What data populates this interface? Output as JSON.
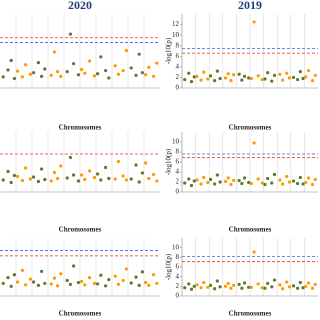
{
  "chart_data": [
    {
      "type": "manhattan",
      "title": "2020",
      "xlabel": "Chromosomes",
      "xlim": [
        0,
        10
      ],
      "ylim": [
        0,
        14
      ],
      "thresholds": [
        {
          "value": 9.5,
          "color": "#e03030"
        },
        {
          "value": 8.6,
          "color": "#4060e0"
        }
      ],
      "series": [
        {
          "color": "#5b7a2b",
          "x": [
            0.2,
            0.5,
            0.7,
            0.9,
            2.1,
            2.4,
            2.6,
            2.8,
            4.2,
            4.4,
            4.6,
            4.9,
            6.1,
            6.3,
            6.6,
            6.8,
            8.2,
            8.5,
            8.7,
            8.9
          ],
          "values": [
            2.1,
            3.4,
            5.2,
            1.8,
            2.9,
            4.8,
            2.2,
            3.6,
            3.1,
            10.2,
            4.6,
            2.5,
            2.7,
            5.9,
            3.3,
            1.9,
            3.8,
            2.4,
            6.4,
            2.9
          ]
        },
        {
          "color": "#ff9900",
          "x": [
            1.1,
            1.4,
            1.6,
            1.9,
            3.2,
            3.4,
            3.6,
            3.8,
            5.1,
            5.3,
            5.6,
            5.9,
            7.2,
            7.4,
            7.7,
            7.9,
            9.1,
            9.3,
            9.6,
            9.8
          ],
          "values": [
            3.2,
            2.1,
            4.4,
            2.6,
            2.4,
            6.8,
            3.1,
            2.2,
            3.5,
            2.8,
            5.1,
            2.3,
            4.2,
            2.6,
            3.3,
            7.1,
            2.5,
            3.9,
            2.2,
            4.7
          ]
        }
      ]
    },
    {
      "type": "manhattan",
      "title": "2019",
      "xlabel": "Chromosomes",
      "ylabel": "-log10(p)",
      "xlim": [
        0,
        10
      ],
      "ylim": [
        0,
        14
      ],
      "yticks": [
        0,
        2,
        4,
        6,
        8,
        10,
        12
      ],
      "thresholds": [
        {
          "value": 7.5,
          "color": "#4060e0"
        },
        {
          "value": 6.6,
          "color": "#e03030"
        }
      ],
      "series": [
        {
          "color": "#5b7a2b",
          "x": [
            0.2,
            0.5,
            0.7,
            0.9,
            2.1,
            2.4,
            2.6,
            2.8,
            4.2,
            4.4,
            4.6,
            4.9,
            6.1,
            6.3,
            6.6,
            6.8,
            8.2,
            8.5,
            8.7,
            8.9
          ],
          "values": [
            1.6,
            2.8,
            1.2,
            2.1,
            2.3,
            1.4,
            3.2,
            1.8,
            2.6,
            1.5,
            2.2,
            1.9,
            1.7,
            2.9,
            1.3,
            2.4,
            2.0,
            1.6,
            3.1,
            1.8
          ]
        },
        {
          "color": "#ff9900",
          "x": [
            1.1,
            1.4,
            1.6,
            1.9,
            3.2,
            3.4,
            3.6,
            3.8,
            5.1,
            5.3,
            5.6,
            5.9,
            7.2,
            7.4,
            7.7,
            7.9,
            9.1,
            9.3,
            9.6,
            9.8
          ],
          "values": [
            2.2,
            1.5,
            3.0,
            1.7,
            1.9,
            2.7,
            1.4,
            2.5,
            1.8,
            12.5,
            2.3,
            1.6,
            2.6,
            1.5,
            2.8,
            1.9,
            2.1,
            3.3,
            1.4,
            2.4
          ]
        }
      ]
    },
    {
      "type": "manhattan",
      "xlabel": "Chromosomes",
      "xlim": [
        0,
        10
      ],
      "ylim": [
        0,
        12
      ],
      "thresholds": [
        {
          "value": 7.6,
          "color": "#e03030"
        }
      ],
      "series": [
        {
          "color": "#5b7a2b",
          "x": [
            0.2,
            0.5,
            0.7,
            0.9,
            2.1,
            2.4,
            2.6,
            2.8,
            4.2,
            4.4,
            4.6,
            4.9,
            6.1,
            6.3,
            6.6,
            6.8,
            8.2,
            8.5,
            8.7,
            8.9
          ],
          "values": [
            2.4,
            4.1,
            1.9,
            3.3,
            3.0,
            2.1,
            4.6,
            2.5,
            2.8,
            6.9,
            3.4,
            2.2,
            3.6,
            2.4,
            4.9,
            2.7,
            2.6,
            5.4,
            2.0,
            3.8
          ]
        },
        {
          "color": "#ff9900",
          "x": [
            1.1,
            1.4,
            1.6,
            1.9,
            3.2,
            3.4,
            3.6,
            3.8,
            5.1,
            5.3,
            5.6,
            5.9,
            7.2,
            7.4,
            7.7,
            7.9,
            9.1,
            9.3,
            9.6,
            9.8
          ],
          "values": [
            3.1,
            2.3,
            4.8,
            2.6,
            2.2,
            3.9,
            2.7,
            5.2,
            3.4,
            2.5,
            4.2,
            2.9,
            2.6,
            6.1,
            3.2,
            2.4,
            5.8,
            2.7,
            3.5,
            2.2
          ]
        }
      ]
    },
    {
      "type": "manhattan",
      "xlabel": "Chromosomes",
      "ylabel": "-log10(p)",
      "xlim": [
        0,
        10
      ],
      "ylim": [
        0,
        12
      ],
      "yticks": [
        0,
        2,
        4,
        6,
        8,
        10
      ],
      "thresholds": [
        {
          "value": 7.6,
          "color": "#4060e0"
        },
        {
          "value": 6.9,
          "color": "#e03030"
        }
      ],
      "series": [
        {
          "color": "#5b7a2b",
          "x": [
            0.2,
            0.5,
            0.7,
            0.9,
            2.1,
            2.4,
            2.6,
            2.8,
            4.2,
            4.4,
            4.6,
            4.9,
            6.1,
            6.3,
            6.6,
            6.8,
            8.2,
            8.5,
            8.7,
            8.9
          ],
          "values": [
            1.8,
            2.6,
            1.3,
            2.2,
            2.5,
            1.6,
            3.4,
            2.0,
            2.3,
            1.7,
            2.8,
            1.9,
            1.5,
            2.7,
            1.8,
            3.5,
            2.2,
            1.7,
            2.9,
            1.6
          ]
        },
        {
          "color": "#ff9900",
          "x": [
            1.1,
            1.4,
            1.6,
            1.9,
            3.2,
            3.4,
            3.6,
            3.8,
            5.1,
            5.3,
            5.6,
            5.9,
            7.2,
            7.4,
            7.7,
            7.9,
            9.1,
            9.3,
            9.6,
            9.8
          ],
          "values": [
            2.4,
            1.6,
            2.9,
            1.9,
            2.1,
            2.8,
            1.5,
            2.3,
            1.7,
            9.8,
            2.6,
            1.8,
            2.4,
            1.6,
            3.1,
            2.0,
            1.9,
            2.8,
            1.5,
            2.5
          ]
        }
      ]
    },
    {
      "type": "manhattan",
      "xlabel": "Chromosomes",
      "xlim": [
        0,
        10
      ],
      "ylim": [
        0,
        12
      ],
      "thresholds": [
        {
          "value": 9.4,
          "color": "#4060e0"
        },
        {
          "value": 8.3,
          "color": "#e03030"
        }
      ],
      "series": [
        {
          "color": "#5b7a2b",
          "x": [
            0.2,
            0.5,
            0.7,
            0.9,
            2.1,
            2.4,
            2.6,
            2.8,
            4.2,
            4.4,
            4.6,
            4.9,
            6.1,
            6.3,
            6.6,
            6.8,
            8.2,
            8.5,
            8.7,
            8.9
          ],
          "values": [
            2.6,
            3.8,
            2.0,
            4.4,
            2.9,
            2.2,
            5.1,
            2.6,
            3.2,
            2.4,
            6.2,
            2.8,
            2.5,
            4.3,
            2.1,
            3.4,
            2.7,
            3.9,
            2.2,
            5.0
          ]
        },
        {
          "color": "#ff9900",
          "x": [
            1.1,
            1.4,
            1.6,
            1.9,
            3.2,
            3.4,
            3.6,
            3.8,
            5.1,
            5.3,
            5.6,
            5.9,
            7.2,
            7.4,
            7.7,
            7.9,
            9.1,
            9.3,
            9.6,
            9.8
          ],
          "values": [
            2.9,
            5.3,
            2.3,
            3.5,
            2.5,
            3.7,
            2.1,
            4.6,
            3.0,
            2.3,
            3.8,
            2.6,
            4.1,
            2.4,
            3.2,
            5.6,
            2.8,
            2.2,
            4.4,
            2.6
          ]
        }
      ]
    },
    {
      "type": "manhattan",
      "xlabel": "Chromosomes",
      "ylabel": "-log10(p)",
      "xlim": [
        0,
        10
      ],
      "ylim": [
        0,
        12
      ],
      "yticks": [
        0,
        2,
        4,
        6,
        8,
        10
      ],
      "thresholds": [
        {
          "value": 8.2,
          "color": "#4060e0"
        },
        {
          "value": 7.1,
          "color": "#e03030"
        }
      ],
      "series": [
        {
          "color": "#5b7a2b",
          "x": [
            0.2,
            0.5,
            0.7,
            0.9,
            2.1,
            2.4,
            2.6,
            2.8,
            4.2,
            4.4,
            4.6,
            4.9,
            6.1,
            6.3,
            6.6,
            6.8,
            8.2,
            8.5,
            8.7,
            8.9
          ],
          "values": [
            1.7,
            2.5,
            1.4,
            2.0,
            2.2,
            1.5,
            3.1,
            1.9,
            2.4,
            1.6,
            2.7,
            1.8,
            1.6,
            2.6,
            1.9,
            3.3,
            2.1,
            1.6,
            2.8,
            1.7
          ]
        },
        {
          "color": "#ff9900",
          "x": [
            1.1,
            1.4,
            1.6,
            1.9,
            3.2,
            3.4,
            3.6,
            3.8,
            5.1,
            5.3,
            5.6,
            5.9,
            7.2,
            7.4,
            7.7,
            7.9,
            9.1,
            9.3,
            9.6,
            9.8
          ],
          "values": [
            2.3,
            1.7,
            2.8,
            1.8,
            2.0,
            2.6,
            1.6,
            2.2,
            1.8,
            9.1,
            2.5,
            1.7,
            2.3,
            1.5,
            2.9,
            1.9,
            2.0,
            2.7,
            1.6,
            2.4
          ]
        }
      ]
    }
  ]
}
